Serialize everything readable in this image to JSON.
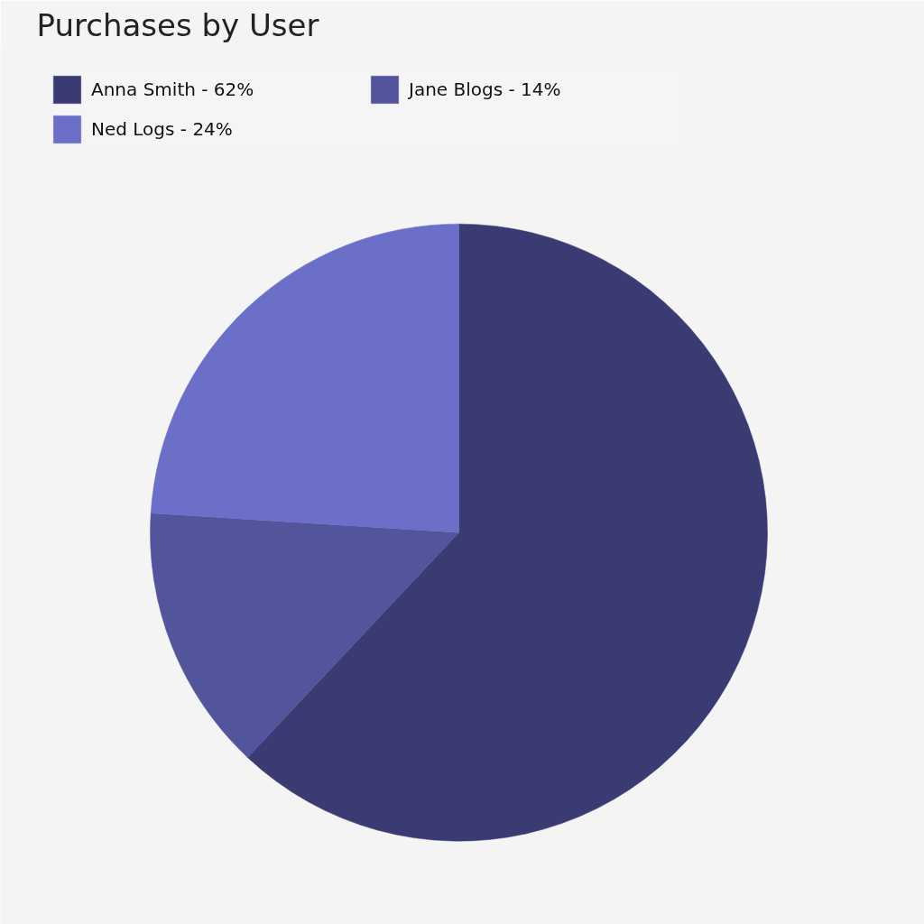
{
  "chart_data": {
    "type": "pie",
    "title": "Purchases by User",
    "categories": [
      "Anna Smith - 62%",
      "Jane Blogs - 14%",
      "Ned Logs - 24%"
    ],
    "values": [
      62,
      14,
      24
    ],
    "colors": [
      "#3b3b74",
      "#52549c",
      "#6b6fc7"
    ],
    "legend": "top left"
  }
}
